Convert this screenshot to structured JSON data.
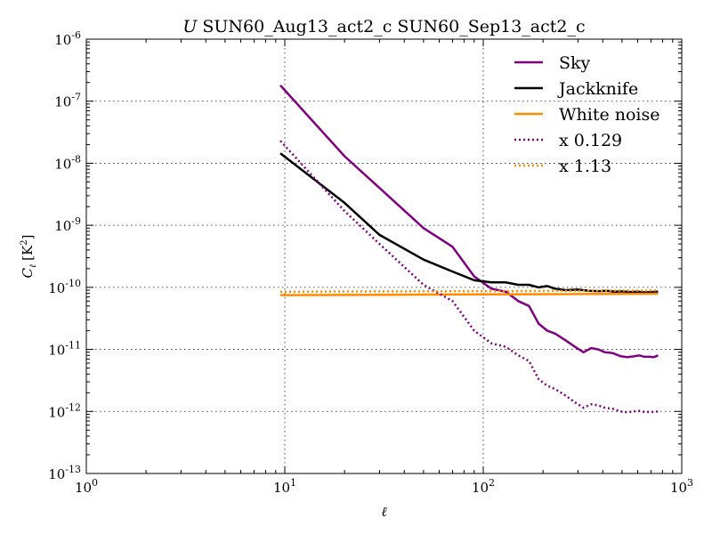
{
  "chart_data": {
    "type": "line",
    "title_prefix": "U",
    "title_main": "SUN60_Aug13_act2_c SUN60_Sep13_act2_c",
    "xlabel": "ℓ",
    "ylabel_symbol": "C",
    "ylabel_sub": "ℓ",
    "ylabel_unit_prefix": "[K",
    "ylabel_unit_exp": "2",
    "ylabel_unit_suffix": "]",
    "x_scale": "log",
    "y_scale": "log",
    "xlim": [
      1,
      1000
    ],
    "ylim": [
      1e-13,
      1e-06
    ],
    "grid": true,
    "legend_position": "top-right",
    "x_ticks": [
      {
        "value": 1,
        "base": "10",
        "exp": "0"
      },
      {
        "value": 10,
        "base": "10",
        "exp": "1"
      },
      {
        "value": 100,
        "base": "10",
        "exp": "2"
      },
      {
        "value": 1000,
        "base": "10",
        "exp": "3"
      }
    ],
    "y_ticks": [
      {
        "value": 1e-13,
        "base": "10",
        "exp": "-13"
      },
      {
        "value": 1e-12,
        "base": "10",
        "exp": "-12"
      },
      {
        "value": 1e-11,
        "base": "10",
        "exp": "-11"
      },
      {
        "value": 1e-10,
        "base": "10",
        "exp": "-10"
      },
      {
        "value": 1e-09,
        "base": "10",
        "exp": "-9"
      },
      {
        "value": 1e-08,
        "base": "10",
        "exp": "-8"
      },
      {
        "value": 1e-07,
        "base": "10",
        "exp": "-7"
      },
      {
        "value": 1e-06,
        "base": "10",
        "exp": "-6"
      }
    ],
    "series": [
      {
        "name": "Sky",
        "color": "#800080",
        "style": "solid",
        "points": [
          [
            9.5,
            1.8e-07
          ],
          [
            20,
            1.3e-08
          ],
          [
            30,
            4e-09
          ],
          [
            50,
            9e-10
          ],
          [
            70,
            4.5e-10
          ],
          [
            90,
            1.5e-10
          ],
          [
            110,
            9.5e-11
          ],
          [
            130,
            8.5e-11
          ],
          [
            150,
            6e-11
          ],
          [
            170,
            5e-11
          ],
          [
            190,
            2.6e-11
          ],
          [
            210,
            2e-11
          ],
          [
            230,
            1.8e-11
          ],
          [
            260,
            1.4e-11
          ],
          [
            290,
            1.1e-11
          ],
          [
            320,
            9e-12
          ],
          [
            350,
            1.05e-11
          ],
          [
            380,
            1e-11
          ],
          [
            410,
            9e-12
          ],
          [
            450,
            8.7e-12
          ],
          [
            490,
            7.8e-12
          ],
          [
            530,
            7.5e-12
          ],
          [
            570,
            7.7e-12
          ],
          [
            610,
            8e-12
          ],
          [
            650,
            7.6e-12
          ],
          [
            690,
            7.6e-12
          ],
          [
            720,
            7.5e-12
          ],
          [
            740,
            7.7e-12
          ],
          [
            760,
            8e-12
          ]
        ]
      },
      {
        "name": "Jackknife",
        "color": "#000000",
        "style": "solid",
        "points": [
          [
            9.5,
            1.45e-08
          ],
          [
            20,
            2.3e-09
          ],
          [
            30,
            7e-10
          ],
          [
            50,
            2.8e-10
          ],
          [
            70,
            1.8e-10
          ],
          [
            90,
            1.3e-10
          ],
          [
            110,
            1.2e-10
          ],
          [
            130,
            1.2e-10
          ],
          [
            150,
            1.1e-10
          ],
          [
            170,
            1.1e-10
          ],
          [
            190,
            1e-10
          ],
          [
            210,
            1.05e-10
          ],
          [
            230,
            9.5e-11
          ],
          [
            260,
            9e-11
          ],
          [
            300,
            9.2e-11
          ],
          [
            340,
            8.8e-11
          ],
          [
            380,
            8.7e-11
          ],
          [
            420,
            8.8e-11
          ],
          [
            460,
            8.5e-11
          ],
          [
            500,
            8.6e-11
          ],
          [
            550,
            8.4e-11
          ],
          [
            600,
            8.5e-11
          ],
          [
            650,
            8.3e-11
          ],
          [
            700,
            8.4e-11
          ],
          [
            760,
            8.5e-11
          ]
        ]
      },
      {
        "name": "White noise",
        "color": "#ff8c00",
        "style": "solid",
        "points": [
          [
            9.5,
            7.5e-11
          ],
          [
            30,
            7.6e-11
          ],
          [
            100,
            7.7e-11
          ],
          [
            300,
            7.8e-11
          ],
          [
            760,
            7.9e-11
          ]
        ]
      },
      {
        "name": "x 0.129",
        "color": "#800080",
        "style": "dotted",
        "points": [
          [
            9.5,
            2.3e-08
          ],
          [
            20,
            1.7e-09
          ],
          [
            30,
            5e-10
          ],
          [
            50,
            1.1e-10
          ],
          [
            70,
            6e-11
          ],
          [
            90,
            2e-11
          ],
          [
            110,
            1.25e-11
          ],
          [
            130,
            1.1e-11
          ],
          [
            150,
            8e-12
          ],
          [
            170,
            6.5e-12
          ],
          [
            190,
            3.3e-12
          ],
          [
            210,
            2.6e-12
          ],
          [
            230,
            2.3e-12
          ],
          [
            260,
            1.8e-12
          ],
          [
            290,
            1.4e-12
          ],
          [
            320,
            1.15e-12
          ],
          [
            350,
            1.3e-12
          ],
          [
            380,
            1.25e-12
          ],
          [
            410,
            1.15e-12
          ],
          [
            450,
            1.1e-12
          ],
          [
            490,
            1e-12
          ],
          [
            530,
            9.7e-13
          ],
          [
            570,
            1e-12
          ],
          [
            610,
            1.02e-12
          ],
          [
            650,
            9.8e-13
          ],
          [
            700,
            9.8e-13
          ],
          [
            760,
            1e-12
          ]
        ]
      },
      {
        "name": "x 1.13",
        "color": "#ff8c00",
        "style": "dotted",
        "points": [
          [
            9.5,
            8.5e-11
          ],
          [
            30,
            8.6e-11
          ],
          [
            100,
            8.7e-11
          ],
          [
            300,
            8.8e-11
          ],
          [
            760,
            8.9e-11
          ]
        ]
      }
    ]
  }
}
